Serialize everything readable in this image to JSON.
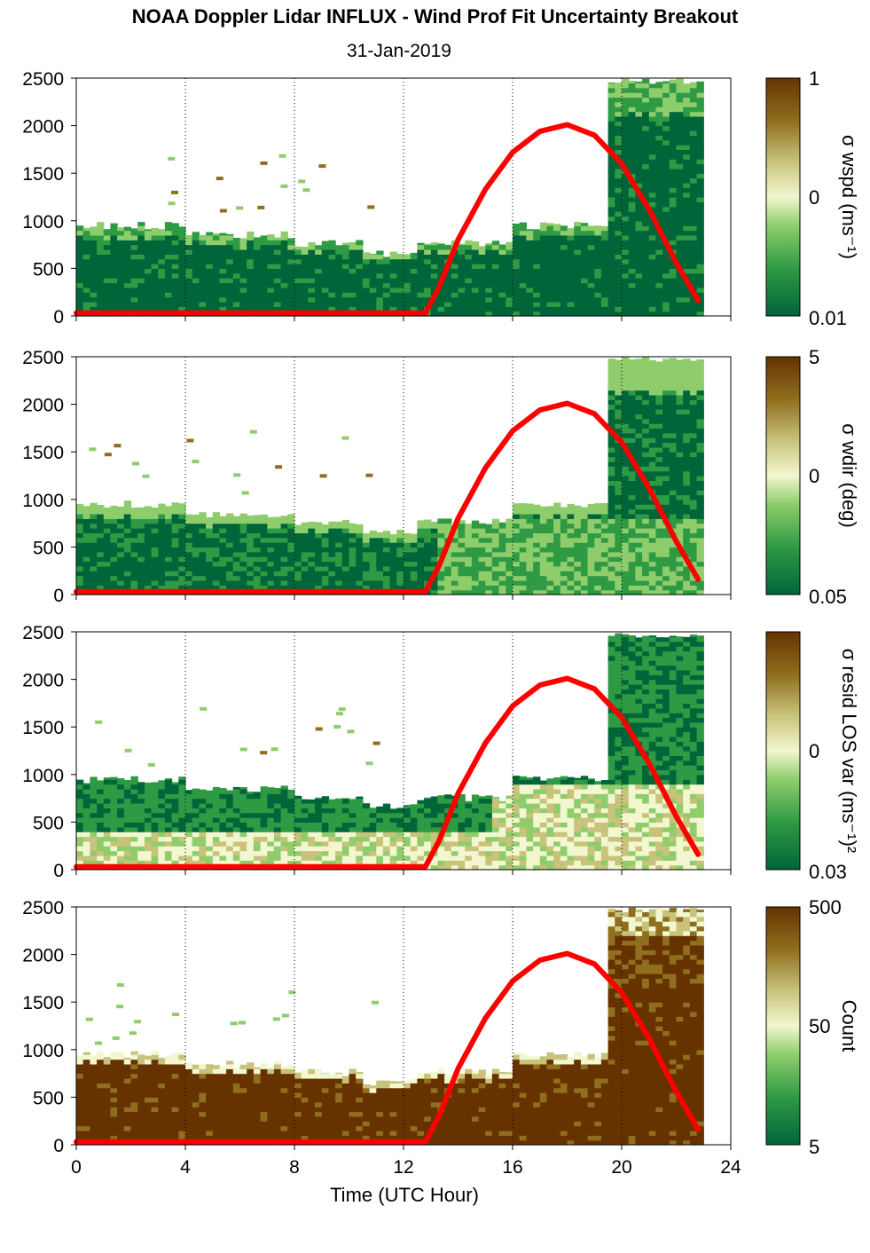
{
  "title": "NOAA Doppler Lidar INFLUX - Wind Prof Fit Uncertainty Breakout",
  "subtitle": "31-Jan-2019",
  "chart_data": {
    "type": "heatmap",
    "xlabel": "Time (UTC Hour)",
    "xlim": [
      0,
      24
    ],
    "xticks": [
      0,
      4,
      8,
      12,
      16,
      20,
      24
    ],
    "xtick_labels": [
      "0",
      "4",
      "8",
      "12",
      "16",
      "20",
      "24"
    ],
    "ylim": [
      0,
      2500
    ],
    "yticks": [
      0,
      500,
      1000,
      1500,
      2000,
      2500
    ],
    "ytick_labels": [
      "0",
      "500",
      "1000",
      "1500",
      "2000",
      "2500"
    ],
    "grid": "vertical dotted lines at x ticks",
    "overlay_line": {
      "color": "#ff0000",
      "points": [
        [
          0,
          30
        ],
        [
          12.8,
          30
        ],
        [
          13.3,
          300
        ],
        [
          14,
          800
        ],
        [
          15,
          1330
        ],
        [
          16,
          1720
        ],
        [
          17,
          1940
        ],
        [
          18,
          2010
        ],
        [
          19,
          1900
        ],
        [
          20,
          1600
        ],
        [
          21,
          1120
        ],
        [
          22,
          560
        ],
        [
          22.8,
          160
        ]
      ]
    },
    "colormap": [
      "#00663a",
      "#2e9a44",
      "#8fcd6c",
      "#f2f7d0",
      "#c8c27a",
      "#8f6f1e",
      "#663300"
    ],
    "panels": [
      {
        "colorbar_label": "σ wspd (ms⁻¹)",
        "colorbar_ticks": [
          "1",
          "0",
          "0.01"
        ],
        "profile": [
          {
            "x0": 0,
            "x1": 4,
            "top": 950
          },
          {
            "x0": 4,
            "x1": 8,
            "top": 850
          },
          {
            "x0": 8,
            "x1": 10.5,
            "top": 760
          },
          {
            "x0": 10.5,
            "x1": 12.5,
            "top": 660
          },
          {
            "x0": 12.5,
            "x1": 16,
            "top": 760
          },
          {
            "x0": 16,
            "x1": 19.5,
            "top": 950
          },
          {
            "x0": 19.5,
            "x1": 22.8,
            "top": 2500
          }
        ],
        "low_level_color": "#00663a"
      },
      {
        "colorbar_label": "σ wdir (deg)",
        "colorbar_ticks": [
          "5",
          "0",
          "0.05"
        ],
        "profile": [
          {
            "x0": 0,
            "x1": 4,
            "top": 950
          },
          {
            "x0": 4,
            "x1": 8,
            "top": 850
          },
          {
            "x0": 8,
            "x1": 10.5,
            "top": 760
          },
          {
            "x0": 10.5,
            "x1": 12.5,
            "top": 660
          },
          {
            "x0": 12.5,
            "x1": 16,
            "top": 760
          },
          {
            "x0": 16,
            "x1": 19.5,
            "top": 950
          },
          {
            "x0": 19.5,
            "x1": 22.8,
            "top": 2500
          }
        ],
        "low_level_color": "#5fb35a"
      },
      {
        "colorbar_label": "σ resid LOS var (ms⁻¹)²",
        "colorbar_ticks": [
          "0",
          "0.03"
        ],
        "profile": [
          {
            "x0": 0,
            "x1": 4,
            "top": 950
          },
          {
            "x0": 4,
            "x1": 8,
            "top": 850
          },
          {
            "x0": 8,
            "x1": 10.5,
            "top": 760
          },
          {
            "x0": 10.5,
            "x1": 12.5,
            "top": 660
          },
          {
            "x0": 12.5,
            "x1": 16,
            "top": 760
          },
          {
            "x0": 16,
            "x1": 19.5,
            "top": 950
          },
          {
            "x0": 19.5,
            "x1": 22.8,
            "top": 2500
          }
        ],
        "low_level_color": "#c5e3a0"
      },
      {
        "colorbar_label": "Count",
        "colorbar_ticks": [
          "500",
          "50",
          "5"
        ],
        "profile": [
          {
            "x0": 0,
            "x1": 4,
            "top": 950
          },
          {
            "x0": 4,
            "x1": 8,
            "top": 850
          },
          {
            "x0": 8,
            "x1": 10.5,
            "top": 760
          },
          {
            "x0": 10.5,
            "x1": 12.5,
            "top": 660
          },
          {
            "x0": 12.5,
            "x1": 16,
            "top": 760
          },
          {
            "x0": 16,
            "x1": 19.5,
            "top": 950
          },
          {
            "x0": 19.5,
            "x1": 22.8,
            "top": 2500
          }
        ],
        "low_level_color": "#663300"
      }
    ]
  }
}
